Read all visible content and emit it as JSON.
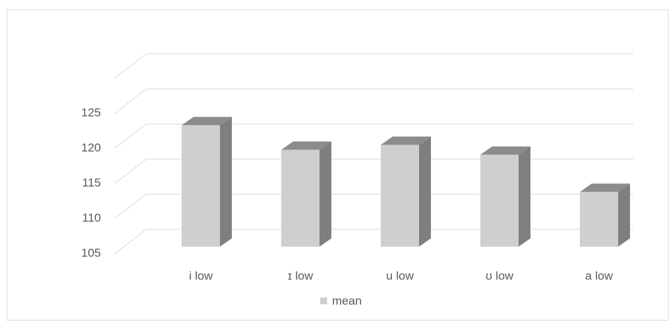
{
  "chart_data": {
    "type": "bar3d",
    "categories": [
      "i low",
      "ɪ low",
      "u low",
      "ʊ low",
      "a low"
    ],
    "series": [
      {
        "name": "mean",
        "color": "#d0cece",
        "values": [
          122.3,
          118.8,
          119.5,
          118.1,
          112.8
        ]
      }
    ],
    "ylim": [
      105,
      130
    ],
    "yticks": [
      105,
      110,
      115,
      120,
      125
    ],
    "grid": true,
    "legend": "bottom"
  }
}
